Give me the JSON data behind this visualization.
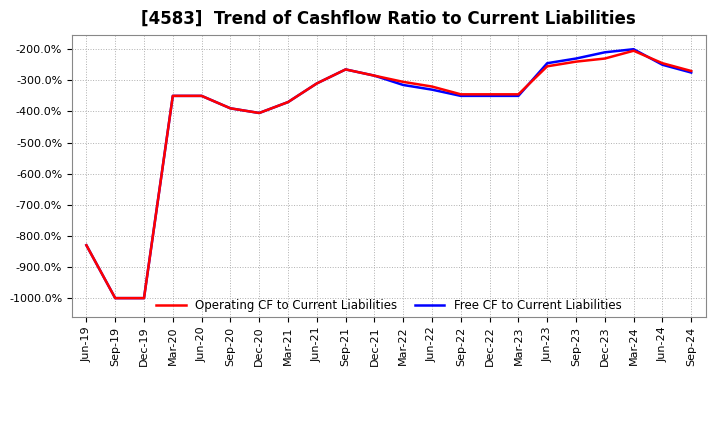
{
  "title": "[4583]  Trend of Cashflow Ratio to Current Liabilities",
  "x_labels": [
    "Jun-19",
    "Sep-19",
    "Dec-19",
    "Mar-20",
    "Jun-20",
    "Sep-20",
    "Dec-20",
    "Mar-21",
    "Jun-21",
    "Sep-21",
    "Dec-21",
    "Mar-22",
    "Jun-22",
    "Sep-22",
    "Dec-22",
    "Mar-23",
    "Jun-23",
    "Sep-23",
    "Dec-23",
    "Mar-24",
    "Jun-24",
    "Sep-24"
  ],
  "operating_cf": [
    -830,
    -1000,
    -1000,
    -350,
    -350,
    -390,
    -405,
    -370,
    -310,
    -265,
    -285,
    -305,
    -320,
    -345,
    -345,
    -345,
    -255,
    -240,
    -230,
    -205,
    -245,
    -270
  ],
  "free_cf": [
    -830,
    -1000,
    -1000,
    -350,
    -350,
    -390,
    -405,
    -370,
    -310,
    -265,
    -285,
    -315,
    -330,
    -350,
    -350,
    -350,
    -245,
    -230,
    -210,
    -200,
    -250,
    -275
  ],
  "operating_color": "#ff0000",
  "free_color": "#0000ff",
  "ylim_min": -1060,
  "ylim_max": -155,
  "yticks": [
    -1000,
    -900,
    -800,
    -700,
    -600,
    -500,
    -400,
    -300,
    -200
  ],
  "background_color": "#ffffff",
  "plot_bg_color": "#ffffff",
  "grid_color": "#b0b0b0",
  "title_fontsize": 12,
  "tick_fontsize": 8,
  "legend_labels": [
    "Operating CF to Current Liabilities",
    "Free CF to Current Liabilities"
  ],
  "legend_fontsize": 8.5,
  "line_width": 1.8
}
